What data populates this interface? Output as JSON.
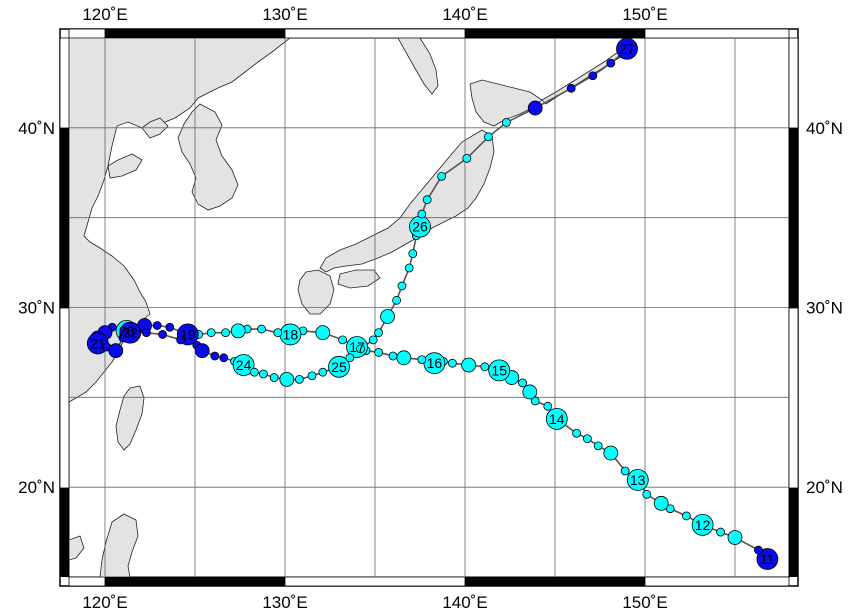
{
  "map": {
    "lon_range": [
      118,
      158
    ],
    "lat_range": [
      15,
      45
    ],
    "colors": {
      "land": "#e3e3e3",
      "coast": "#222222",
      "grid": "#666666",
      "track": "#555555",
      "cyan": "#00ffff",
      "blue": "#0a0aee"
    },
    "lon_ticks": [
      {
        "value": 120,
        "label": "120˚E"
      },
      {
        "value": 130,
        "label": "130˚E"
      },
      {
        "value": 140,
        "label": "140˚E"
      },
      {
        "value": 150,
        "label": "150˚E"
      }
    ],
    "lat_ticks": [
      {
        "value": 20,
        "label": "20˚N"
      },
      {
        "value": 30,
        "label": "30˚N"
      },
      {
        "value": 40,
        "label": "40˚N"
      }
    ]
  },
  "track": {
    "points": [
      {
        "lon": 156.8,
        "lat": 16.0,
        "size": "L",
        "color": "blue",
        "label": "11"
      },
      {
        "lon": 156.3,
        "lat": 16.5,
        "size": "S",
        "color": "blue"
      },
      {
        "lon": 155.0,
        "lat": 17.2,
        "size": "M",
        "color": "cyan"
      },
      {
        "lon": 154.2,
        "lat": 17.5,
        "size": "S",
        "color": "cyan"
      },
      {
        "lon": 153.2,
        "lat": 17.9,
        "size": "L",
        "color": "cyan",
        "label": "12"
      },
      {
        "lon": 152.3,
        "lat": 18.4,
        "size": "S",
        "color": "cyan"
      },
      {
        "lon": 151.4,
        "lat": 18.8,
        "size": "S",
        "color": "cyan"
      },
      {
        "lon": 150.9,
        "lat": 19.1,
        "size": "M",
        "color": "cyan"
      },
      {
        "lon": 150.1,
        "lat": 19.6,
        "size": "S",
        "color": "cyan"
      },
      {
        "lon": 149.6,
        "lat": 20.4,
        "size": "L",
        "color": "cyan",
        "label": "13"
      },
      {
        "lon": 148.9,
        "lat": 20.9,
        "size": "S",
        "color": "cyan"
      },
      {
        "lon": 148.1,
        "lat": 21.9,
        "size": "M",
        "color": "cyan"
      },
      {
        "lon": 147.4,
        "lat": 22.3,
        "size": "S",
        "color": "cyan"
      },
      {
        "lon": 146.8,
        "lat": 22.7,
        "size": "S",
        "color": "cyan"
      },
      {
        "lon": 146.2,
        "lat": 23.0,
        "size": "S",
        "color": "cyan"
      },
      {
        "lon": 145.1,
        "lat": 23.8,
        "size": "L",
        "color": "cyan",
        "label": "14"
      },
      {
        "lon": 144.6,
        "lat": 24.5,
        "size": "S",
        "color": "cyan"
      },
      {
        "lon": 143.9,
        "lat": 24.8,
        "size": "S",
        "color": "cyan"
      },
      {
        "lon": 143.6,
        "lat": 25.3,
        "size": "M",
        "color": "cyan"
      },
      {
        "lon": 143.2,
        "lat": 25.8,
        "size": "S",
        "color": "cyan"
      },
      {
        "lon": 142.6,
        "lat": 26.1,
        "size": "M",
        "color": "cyan"
      },
      {
        "lon": 141.9,
        "lat": 26.5,
        "size": "L",
        "color": "cyan",
        "label": "15"
      },
      {
        "lon": 141.1,
        "lat": 26.7,
        "size": "S",
        "color": "cyan"
      },
      {
        "lon": 140.2,
        "lat": 26.8,
        "size": "M",
        "color": "cyan"
      },
      {
        "lon": 139.3,
        "lat": 26.9,
        "size": "S",
        "color": "cyan"
      },
      {
        "lon": 138.8,
        "lat": 27.0,
        "size": "S",
        "color": "cyan"
      },
      {
        "lon": 138.3,
        "lat": 26.9,
        "size": "L",
        "color": "cyan",
        "label": "16"
      },
      {
        "lon": 137.6,
        "lat": 27.1,
        "size": "S",
        "color": "cyan"
      },
      {
        "lon": 136.6,
        "lat": 27.2,
        "size": "M",
        "color": "cyan"
      },
      {
        "lon": 136.0,
        "lat": 27.3,
        "size": "S",
        "color": "cyan"
      },
      {
        "lon": 135.2,
        "lat": 27.5,
        "size": "S",
        "color": "cyan"
      },
      {
        "lon": 134.5,
        "lat": 27.6,
        "size": "S",
        "color": "cyan"
      },
      {
        "lon": 134.0,
        "lat": 27.8,
        "size": "L",
        "color": "cyan",
        "label": "17"
      },
      {
        "lon": 133.2,
        "lat": 28.2,
        "size": "S",
        "color": "cyan"
      },
      {
        "lon": 132.1,
        "lat": 28.6,
        "size": "M",
        "color": "cyan"
      },
      {
        "lon": 131.0,
        "lat": 28.7,
        "size": "S",
        "color": "cyan"
      },
      {
        "lon": 130.3,
        "lat": 28.5,
        "size": "L",
        "color": "cyan",
        "label": "18"
      },
      {
        "lon": 129.6,
        "lat": 28.6,
        "size": "S",
        "color": "cyan"
      },
      {
        "lon": 128.7,
        "lat": 28.8,
        "size": "S",
        "color": "cyan"
      },
      {
        "lon": 127.9,
        "lat": 28.8,
        "size": "S",
        "color": "cyan"
      },
      {
        "lon": 127.4,
        "lat": 28.7,
        "size": "M",
        "color": "cyan"
      },
      {
        "lon": 126.7,
        "lat": 28.6,
        "size": "S",
        "color": "cyan"
      },
      {
        "lon": 125.9,
        "lat": 28.6,
        "size": "S",
        "color": "cyan"
      },
      {
        "lon": 125.2,
        "lat": 28.5,
        "size": "S",
        "color": "cyan"
      },
      {
        "lon": 124.6,
        "lat": 28.5,
        "size": "L",
        "color": "blue",
        "label": "19"
      },
      {
        "lon": 123.6,
        "lat": 28.9,
        "size": "S",
        "color": "blue"
      },
      {
        "lon": 122.9,
        "lat": 29.0,
        "size": "S",
        "color": "blue"
      },
      {
        "lon": 122.2,
        "lat": 29.0,
        "size": "M",
        "color": "blue"
      },
      {
        "lon": 121.6,
        "lat": 28.9,
        "size": "S",
        "color": "blue"
      },
      {
        "lon": 121.2,
        "lat": 28.7,
        "size": "L",
        "color": "cyan",
        "label": "20"
      },
      {
        "lon": 120.4,
        "lat": 28.9,
        "size": "S",
        "color": "blue"
      },
      {
        "lon": 120.0,
        "lat": 28.6,
        "size": "M",
        "color": "blue"
      },
      {
        "lon": 119.6,
        "lat": 28.3,
        "size": "M",
        "color": "blue"
      },
      {
        "lon": 119.6,
        "lat": 28.0,
        "size": "L",
        "color": "blue",
        "label": "21"
      },
      {
        "lon": 120.1,
        "lat": 27.8,
        "size": "S",
        "color": "blue"
      },
      {
        "lon": 120.6,
        "lat": 27.6,
        "size": "M",
        "color": "blue"
      },
      {
        "lon": 121.0,
        "lat": 28.3,
        "size": "S",
        "color": "blue"
      },
      {
        "lon": 121.4,
        "lat": 28.6,
        "size": "L",
        "color": "blue",
        "label": "22"
      },
      {
        "lon": 122.3,
        "lat": 28.6,
        "size": "S",
        "color": "blue"
      },
      {
        "lon": 123.2,
        "lat": 28.5,
        "size": "S",
        "color": "blue"
      },
      {
        "lon": 124.2,
        "lat": 28.2,
        "size": "S",
        "color": "blue"
      },
      {
        "lon": 125.1,
        "lat": 27.9,
        "size": "S",
        "color": "blue"
      },
      {
        "lon": 125.4,
        "lat": 27.6,
        "size": "M",
        "color": "blue"
      },
      {
        "lon": 126.1,
        "lat": 27.3,
        "size": "S",
        "color": "blue"
      },
      {
        "lon": 126.6,
        "lat": 27.2,
        "size": "S",
        "color": "blue"
      },
      {
        "lon": 127.2,
        "lat": 27.0,
        "size": "S",
        "color": "cyan"
      },
      {
        "lon": 127.7,
        "lat": 26.8,
        "size": "L",
        "color": "cyan",
        "label": "24"
      },
      {
        "lon": 128.3,
        "lat": 26.4,
        "size": "S",
        "color": "cyan"
      },
      {
        "lon": 128.8,
        "lat": 26.3,
        "size": "S",
        "color": "cyan"
      },
      {
        "lon": 129.4,
        "lat": 26.1,
        "size": "S",
        "color": "cyan"
      },
      {
        "lon": 130.1,
        "lat": 26.0,
        "size": "M",
        "color": "cyan"
      },
      {
        "lon": 130.8,
        "lat": 26.0,
        "size": "S",
        "color": "cyan"
      },
      {
        "lon": 131.5,
        "lat": 26.2,
        "size": "S",
        "color": "cyan"
      },
      {
        "lon": 132.1,
        "lat": 26.4,
        "size": "S",
        "color": "cyan"
      },
      {
        "lon": 133.0,
        "lat": 26.7,
        "size": "L",
        "color": "cyan",
        "label": "25"
      },
      {
        "lon": 133.6,
        "lat": 27.2,
        "size": "S",
        "color": "cyan"
      },
      {
        "lon": 134.2,
        "lat": 27.7,
        "size": "S",
        "color": "cyan"
      },
      {
        "lon": 134.9,
        "lat": 28.2,
        "size": "S",
        "color": "cyan"
      },
      {
        "lon": 135.2,
        "lat": 28.6,
        "size": "S",
        "color": "cyan"
      },
      {
        "lon": 135.7,
        "lat": 29.5,
        "size": "M",
        "color": "cyan"
      },
      {
        "lon": 136.2,
        "lat": 30.4,
        "size": "S",
        "color": "cyan"
      },
      {
        "lon": 136.5,
        "lat": 31.2,
        "size": "S",
        "color": "cyan"
      },
      {
        "lon": 136.9,
        "lat": 32.2,
        "size": "S",
        "color": "cyan"
      },
      {
        "lon": 137.1,
        "lat": 33.0,
        "size": "S",
        "color": "cyan"
      },
      {
        "lon": 137.3,
        "lat": 34.0,
        "size": "S",
        "color": "cyan"
      },
      {
        "lon": 137.5,
        "lat": 34.5,
        "size": "L",
        "color": "cyan",
        "label": "26"
      },
      {
        "lon": 137.6,
        "lat": 35.2,
        "size": "S",
        "color": "cyan"
      },
      {
        "lon": 137.9,
        "lat": 36.0,
        "size": "S",
        "color": "cyan"
      },
      {
        "lon": 138.7,
        "lat": 37.3,
        "size": "S",
        "color": "cyan"
      },
      {
        "lon": 140.1,
        "lat": 38.3,
        "size": "S",
        "color": "cyan"
      },
      {
        "lon": 141.3,
        "lat": 39.5,
        "size": "S",
        "color": "cyan"
      },
      {
        "lon": 142.3,
        "lat": 40.3,
        "size": "S",
        "color": "cyan"
      },
      {
        "lon": 143.9,
        "lat": 41.1,
        "size": "M",
        "color": "blue"
      },
      {
        "lon": 145.9,
        "lat": 42.2,
        "size": "S",
        "color": "blue"
      },
      {
        "lon": 147.1,
        "lat": 42.9,
        "size": "S",
        "color": "blue"
      },
      {
        "lon": 148.1,
        "lat": 43.6,
        "size": "S",
        "color": "blue"
      },
      {
        "lon": 148.8,
        "lat": 44.2,
        "size": "S",
        "color": "blue"
      },
      {
        "lon": 149.0,
        "lat": 44.4,
        "size": "L",
        "color": "blue",
        "label": "27"
      }
    ]
  }
}
